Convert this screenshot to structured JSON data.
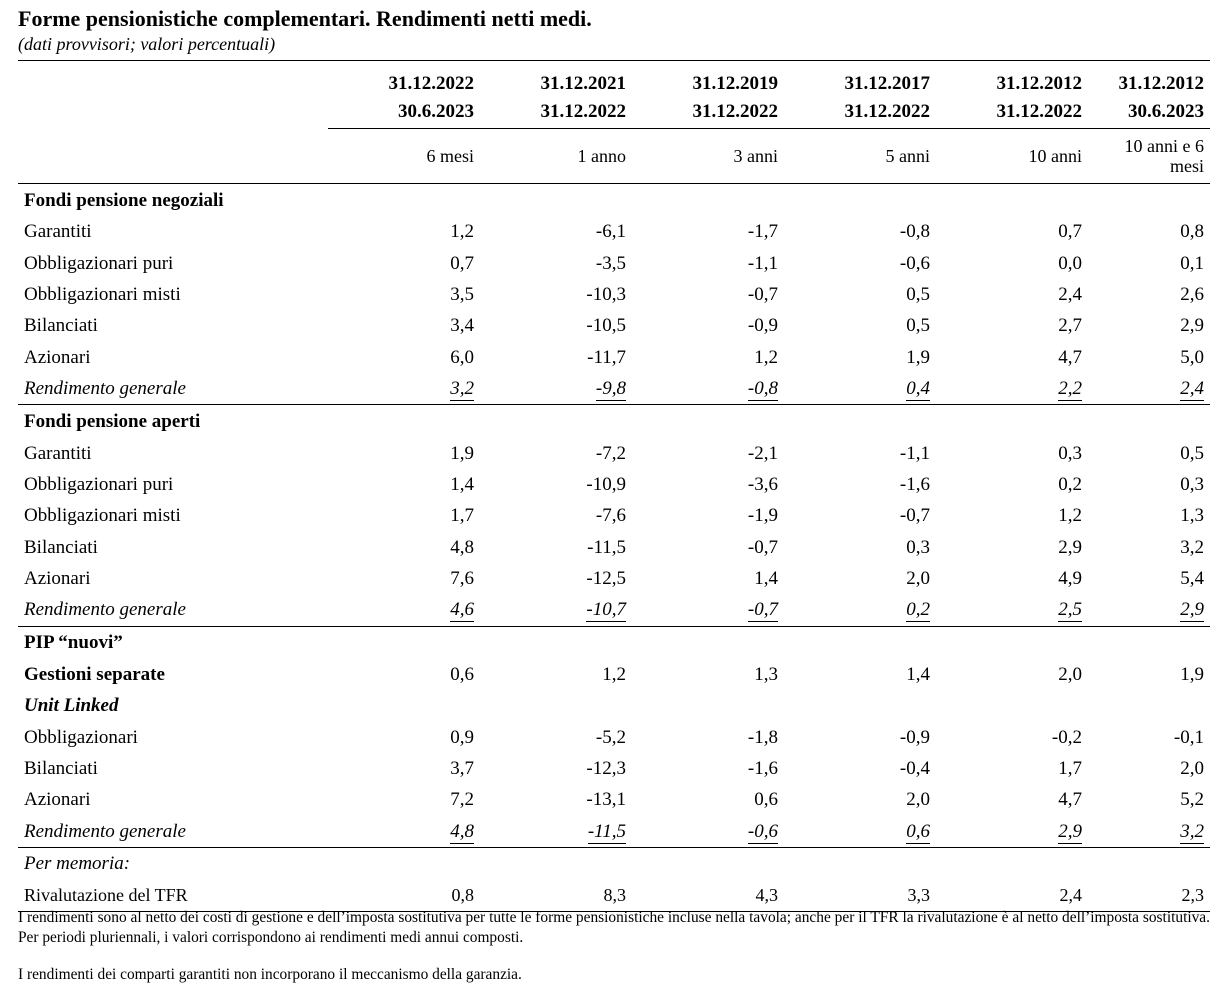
{
  "title": "Forme pensionistiche complementari. Rendimenti netti medi.",
  "subtitle": "(dati provvisori; valori percentuali)",
  "columns": [
    {
      "from": "31.12.2022",
      "to": "30.6.2023",
      "period": "6 mesi"
    },
    {
      "from": "31.12.2021",
      "to": "31.12.2022",
      "period": "1 anno"
    },
    {
      "from": "31.12.2019",
      "to": "31.12.2022",
      "period": "3 anni"
    },
    {
      "from": "31.12.2017",
      "to": "31.12.2022",
      "period": "5 anni"
    },
    {
      "from": "31.12.2012",
      "to": "31.12.2022",
      "period": "10 anni"
    },
    {
      "from": "31.12.2012",
      "to": "30.6.2023",
      "period": "10 anni e 6 mesi"
    }
  ],
  "sections": [
    {
      "title": "Fondi pensione negoziali",
      "rows": [
        {
          "label": "Garantiti",
          "values": [
            "1,2",
            "-6,1",
            "-1,7",
            "-0,8",
            "0,7",
            "0,8"
          ]
        },
        {
          "label": "Obbligazionari puri",
          "values": [
            "0,7",
            "-3,5",
            "-1,1",
            "-0,6",
            "0,0",
            "0,1"
          ]
        },
        {
          "label": "Obbligazionari misti",
          "values": [
            "3,5",
            "-10,3",
            "-0,7",
            "0,5",
            "2,4",
            "2,6"
          ]
        },
        {
          "label": "Bilanciati",
          "values": [
            "3,4",
            "-10,5",
            "-0,9",
            "0,5",
            "2,7",
            "2,9"
          ]
        },
        {
          "label": "Azionari",
          "values": [
            "6,0",
            "-11,7",
            "1,2",
            "1,9",
            "4,7",
            "5,0"
          ]
        },
        {
          "label": "Rendimento generale",
          "values": [
            "3,2",
            "-9,8",
            "-0,8",
            "0,4",
            "2,2",
            "2,4"
          ]
        }
      ]
    },
    {
      "title": "Fondi pensione aperti",
      "rows": [
        {
          "label": "Garantiti",
          "values": [
            "1,9",
            "-7,2",
            "-2,1",
            "-1,1",
            "0,3",
            "0,5"
          ]
        },
        {
          "label": "Obbligazionari puri",
          "values": [
            "1,4",
            "-10,9",
            "-3,6",
            "-1,6",
            "0,2",
            "0,3"
          ]
        },
        {
          "label": "Obbligazionari misti",
          "values": [
            "1,7",
            "-7,6",
            "-1,9",
            "-0,7",
            "1,2",
            "1,3"
          ]
        },
        {
          "label": "Bilanciati",
          "values": [
            "4,8",
            "-11,5",
            "-0,7",
            "0,3",
            "2,9",
            "3,2"
          ]
        },
        {
          "label": "Azionari",
          "values": [
            "7,6",
            "-12,5",
            "1,4",
            "2,0",
            "4,9",
            "5,4"
          ]
        },
        {
          "label": "Rendimento generale",
          "values": [
            "4,6",
            "-10,7",
            "-0,7",
            "0,2",
            "2,5",
            "2,9"
          ]
        }
      ]
    },
    {
      "title": "PIP “nuovi”",
      "rows": [
        {
          "label": "Gestioni separate",
          "values": [
            "0,6",
            "1,2",
            "1,3",
            "1,4",
            "2,0",
            "1,9"
          ]
        },
        {
          "label": "Unit Linked"
        },
        {
          "label": "Obbligazionari",
          "values": [
            "0,9",
            "-5,2",
            "-1,8",
            "-0,9",
            "-0,2",
            "-0,1"
          ]
        },
        {
          "label": "Bilanciati",
          "values": [
            "3,7",
            "-12,3",
            "-1,6",
            "-0,4",
            "1,7",
            "2,0"
          ]
        },
        {
          "label": "Azionari",
          "values": [
            "7,2",
            "-13,1",
            "0,6",
            "2,0",
            "4,7",
            "5,2"
          ]
        },
        {
          "label": "Rendimento generale",
          "values": [
            "4,8",
            "-11,5",
            "-0,6",
            "0,6",
            "2,9",
            "3,2"
          ]
        }
      ]
    }
  ],
  "memo": {
    "title": "Per memoria:",
    "label": "Rivalutazione del TFR",
    "values": [
      "0,8",
      "8,3",
      "4,3",
      "3,3",
      "2,4",
      "2,3"
    ]
  },
  "notes": [
    "I rendimenti sono al netto dei costi di gestione e dell’imposta sostitutiva per tutte le forme pensionistiche incluse nella tavola; anche per il TFR la rivalutazione è al netto dell’imposta sostitutiva. Per periodi pluriennali, i valori corrispondono ai rendimenti medi annui composti.",
    "I rendimenti dei comparti garantiti non incorporano il meccanismo della garanzia."
  ]
}
